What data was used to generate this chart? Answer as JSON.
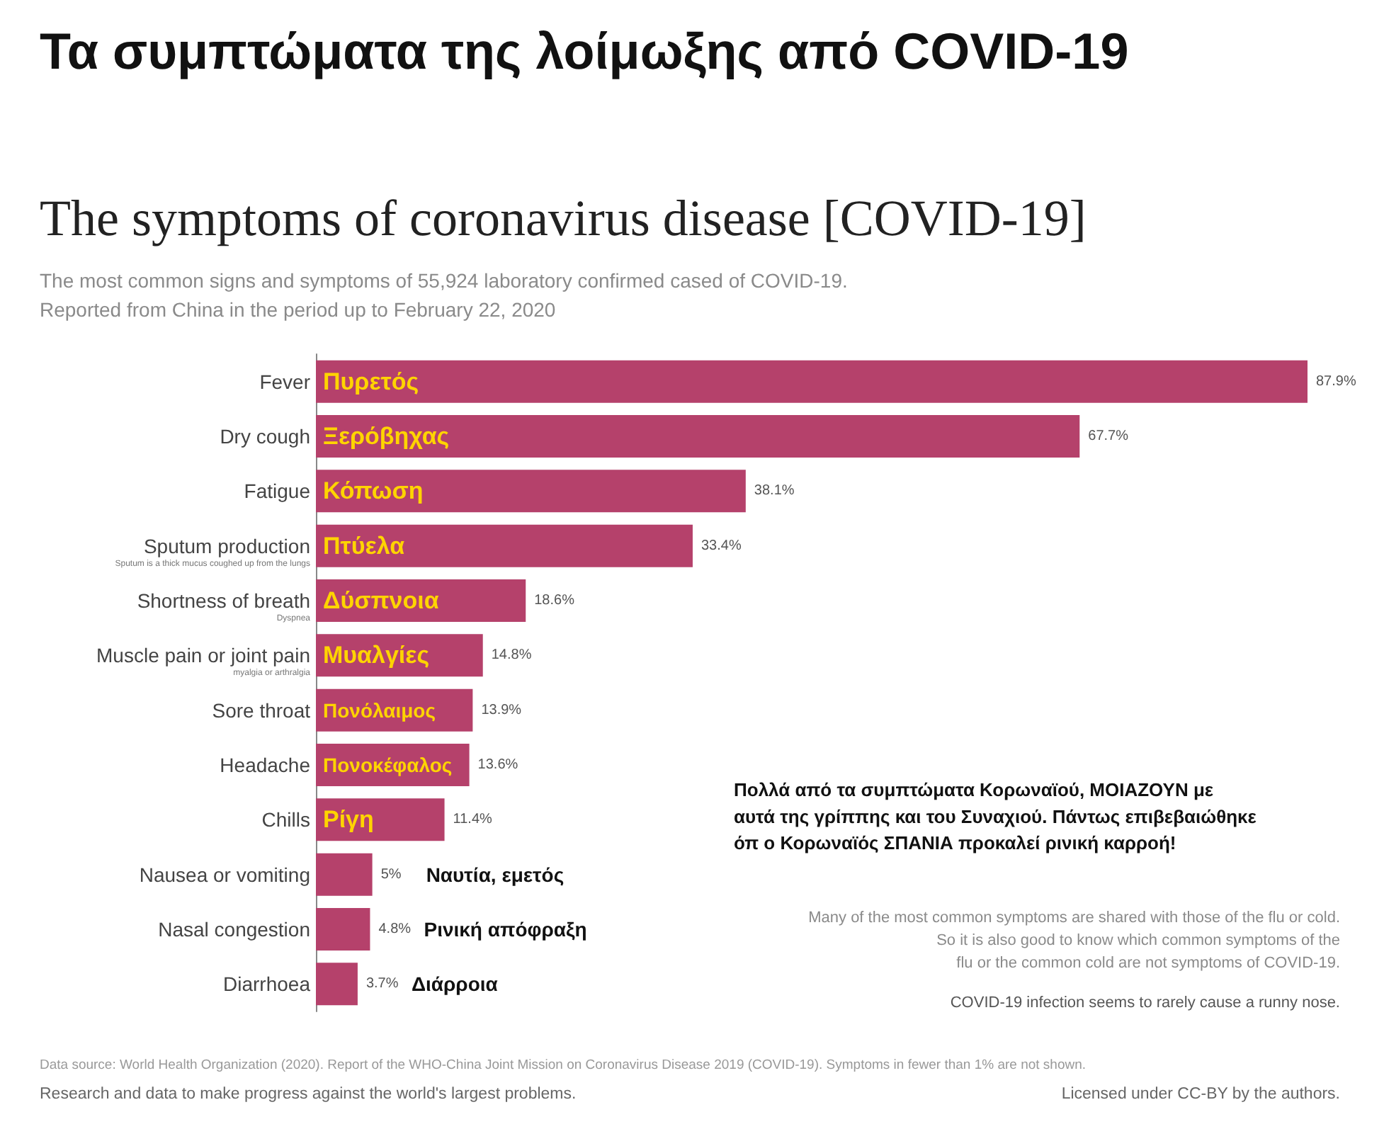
{
  "chart_data": {
    "type": "bar",
    "orientation": "horizontal",
    "title": "Τα συμπτώματα της λοίμωξης από COVID-19",
    "subtitle": "The symptoms of coronavirus disease [COVID-19]",
    "categories": [
      "Fever",
      "Dry cough",
      "Fatigue",
      "Sputum production",
      "Shortness of breath",
      "Muscle pain or joint pain",
      "Sore throat",
      "Headache",
      "Chills",
      "Nausea or vomiting",
      "Nasal congestion",
      "Diarrhoea"
    ],
    "values": [
      87.9,
      67.7,
      38.1,
      33.4,
      18.6,
      14.8,
      13.9,
      13.6,
      11.4,
      5,
      4.8,
      3.7
    ],
    "value_labels": [
      "87.9%",
      "67.7%",
      "38.1%",
      "33.4%",
      "18.6%",
      "14.8%",
      "13.9%",
      "13.6%",
      "11.4%",
      "5%",
      "4.8%",
      "3.7%"
    ],
    "color": "#b5416b",
    "grid": false,
    "annotations": [
      "The most common signs and symptoms of 55,924 laboratory confirmed cased of COVID-19.\nReported from China in the period up to February 22, 2020",
      "Πολλά από τα συμπτώματα Κορωναϊού, ΜΟΙΑΖΟΥΝ με\nαυτά της γρίππης και του Συναχιού. Πάντως επιβεβαιώθηκε\nόπ ο Κορωναϊός ΣΠΑΝΙΑ προκαλεί ρινική καρροή!",
      "Many of the most common symptoms are shared with those of the flu or cold.\nSo it is also good to know which common symptoms of the\nflu or the common cold are not symptoms of COVID-19.",
      "COVID-19 infection seems to rarely cause a runny nose.",
      "Data source: World Health Organization (2020). Report of the WHO-China Joint Mission on Coronavirus Disease 2019 (COVID-19). Symptoms in fewer than 1% are not shown.",
      "Research and data to make progress against the world's largest problems.",
      "Licensed under CC-BY by the authors.",
      "Sputum is a thick mucus coughed up from the lungs",
      "Dyspnea",
      "myalgia or arthralgia",
      "Πυρετός",
      "Ξερόβηχας",
      "Κόπωση",
      "Πτύελα",
      "Δύσπνοια",
      "Μυαλγίες",
      "Πονόλαιμος",
      "Πονοκέφαλος",
      "Ρίγη",
      "Ναυτία, εμετός",
      "Ρινική απόφραξη",
      "Διάρροια"
    ]
  }
}
